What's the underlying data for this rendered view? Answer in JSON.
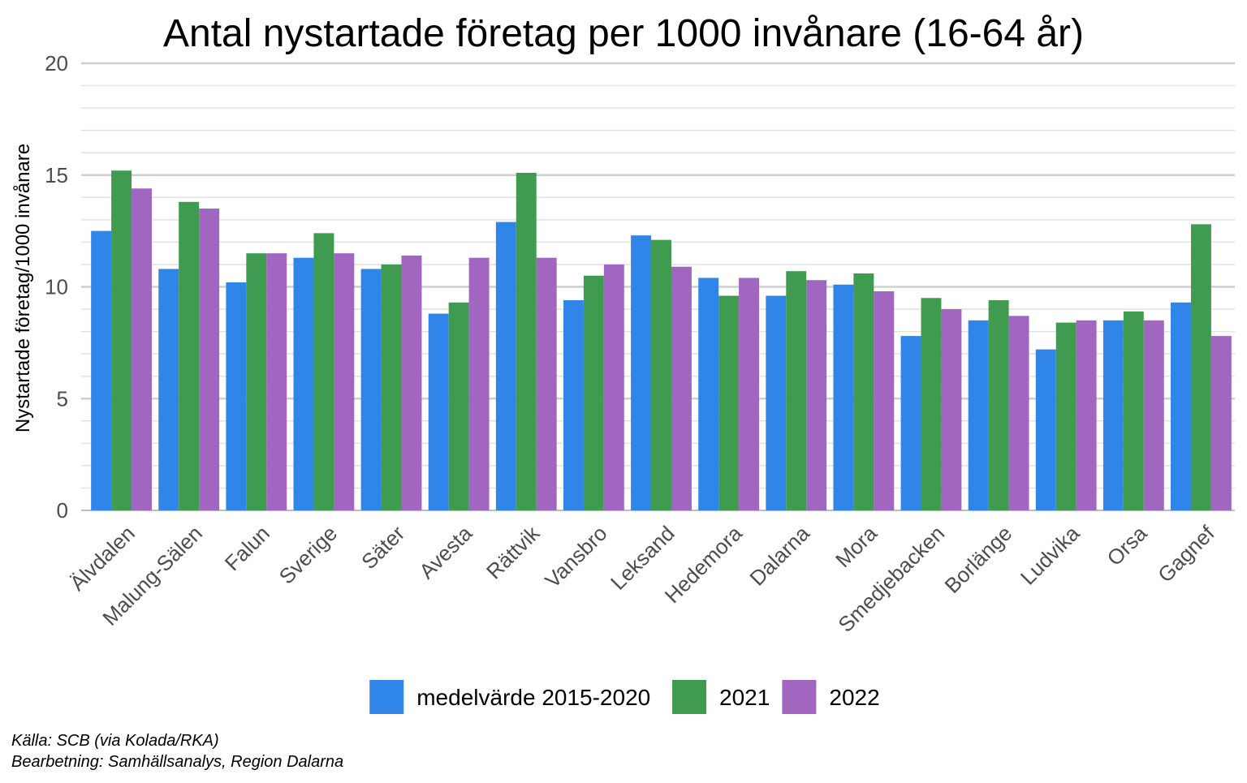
{
  "chart_data": {
    "type": "bar",
    "title": "Antal nystartade företag per 1000 invånare (16-64 år)",
    "xlabel": "",
    "ylabel": "Nystartade företag/1000 invånare",
    "ylim": [
      0,
      20
    ],
    "yticks": [
      0,
      5,
      10,
      15,
      20
    ],
    "grid": true,
    "legend_position": "bottom",
    "categories": [
      "Älvdalen",
      "Malung-Sälen",
      "Falun",
      "Sverige",
      "Säter",
      "Avesta",
      "Rättvik",
      "Vansbro",
      "Leksand",
      "Hedemora",
      "Dalarna",
      "Mora",
      "Smedjebacken",
      "Borlänge",
      "Ludvika",
      "Orsa",
      "Gagnef"
    ],
    "series": [
      {
        "name": "medelvärde 2015-2020",
        "color": "#3085e8",
        "values": [
          12.5,
          10.8,
          10.2,
          11.3,
          10.8,
          8.8,
          12.9,
          9.4,
          12.3,
          10.4,
          9.6,
          10.1,
          7.8,
          8.5,
          7.2,
          8.5,
          9.3
        ]
      },
      {
        "name": "2021",
        "color": "#3f9b50",
        "values": [
          15.2,
          13.8,
          11.5,
          12.4,
          11.0,
          9.3,
          15.1,
          10.5,
          12.1,
          9.6,
          10.7,
          10.6,
          9.5,
          9.4,
          8.4,
          8.9,
          12.8
        ]
      },
      {
        "name": "2022",
        "color": "#a066c0",
        "values": [
          14.4,
          13.5,
          11.5,
          11.5,
          11.4,
          11.3,
          11.3,
          11.0,
          10.9,
          10.4,
          10.3,
          9.8,
          9.0,
          8.7,
          8.5,
          8.5,
          7.8
        ]
      }
    ]
  },
  "captions": {
    "source": "Källa: SCB (via Kolada/RKA)",
    "processing": "Bearbetning: Samhällsanalys, Region Dalarna"
  }
}
